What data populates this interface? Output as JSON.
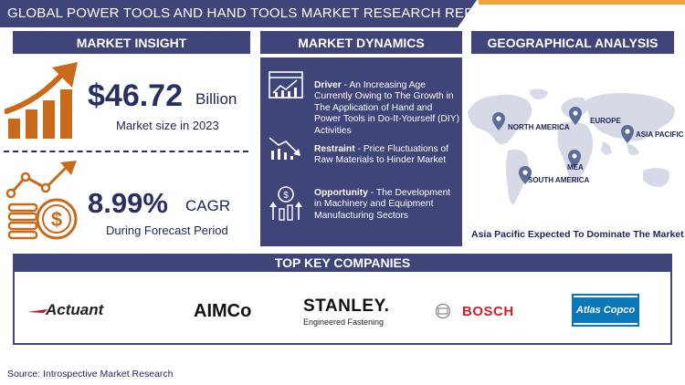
{
  "header": {
    "title": "GLOBAL POWER TOOLS AND HAND TOOLS MARKET RESEARCH REPORT"
  },
  "sections": {
    "insight": "MARKET INSIGHT",
    "dynamics": "MARKET DYNAMICS",
    "geo": "GEOGRAPHICAL ANALYSIS",
    "companies": "TOP KEY COMPANIES"
  },
  "insight": {
    "market_size_value": "$46.72",
    "market_size_unit": "Billion",
    "market_size_caption": "Market size in 2023",
    "cagr_value": "8.99%",
    "cagr_unit": "CAGR",
    "cagr_caption": "During Forecast Period"
  },
  "dynamics": {
    "driver_label": "Driver",
    "driver_text": " - An Increasing Age Currently Owing to The Growth in The Application of Hand and Power Tools in Do-It-Yourself (DIY) Activities",
    "restraint_label": "Restraint",
    "restraint_text": " - Price Fluctuations of Raw Materials to Hinder Market",
    "opportunity_label": "Opportunity",
    "opportunity_text": " - The Development in Machinery and Equipment Manufacturing Sectors"
  },
  "geo": {
    "regions": [
      "NORTH AMERICA",
      "EUROPE",
      "ASIA PACIFIC",
      "MEA",
      "SOUTH AMERICA"
    ],
    "caption": "Asia Pacific Expected To Dominate The Market"
  },
  "companies": [
    "Actuant",
    "AIMCo",
    "STANLEY.",
    "Engineered Fastening",
    "BOSCH",
    "Atlas Copco"
  ],
  "source": "Source: Introspective Market Research",
  "colors": {
    "navy": "#3f4479",
    "orange": "#c96a1b",
    "accent": "#f2a33a"
  }
}
